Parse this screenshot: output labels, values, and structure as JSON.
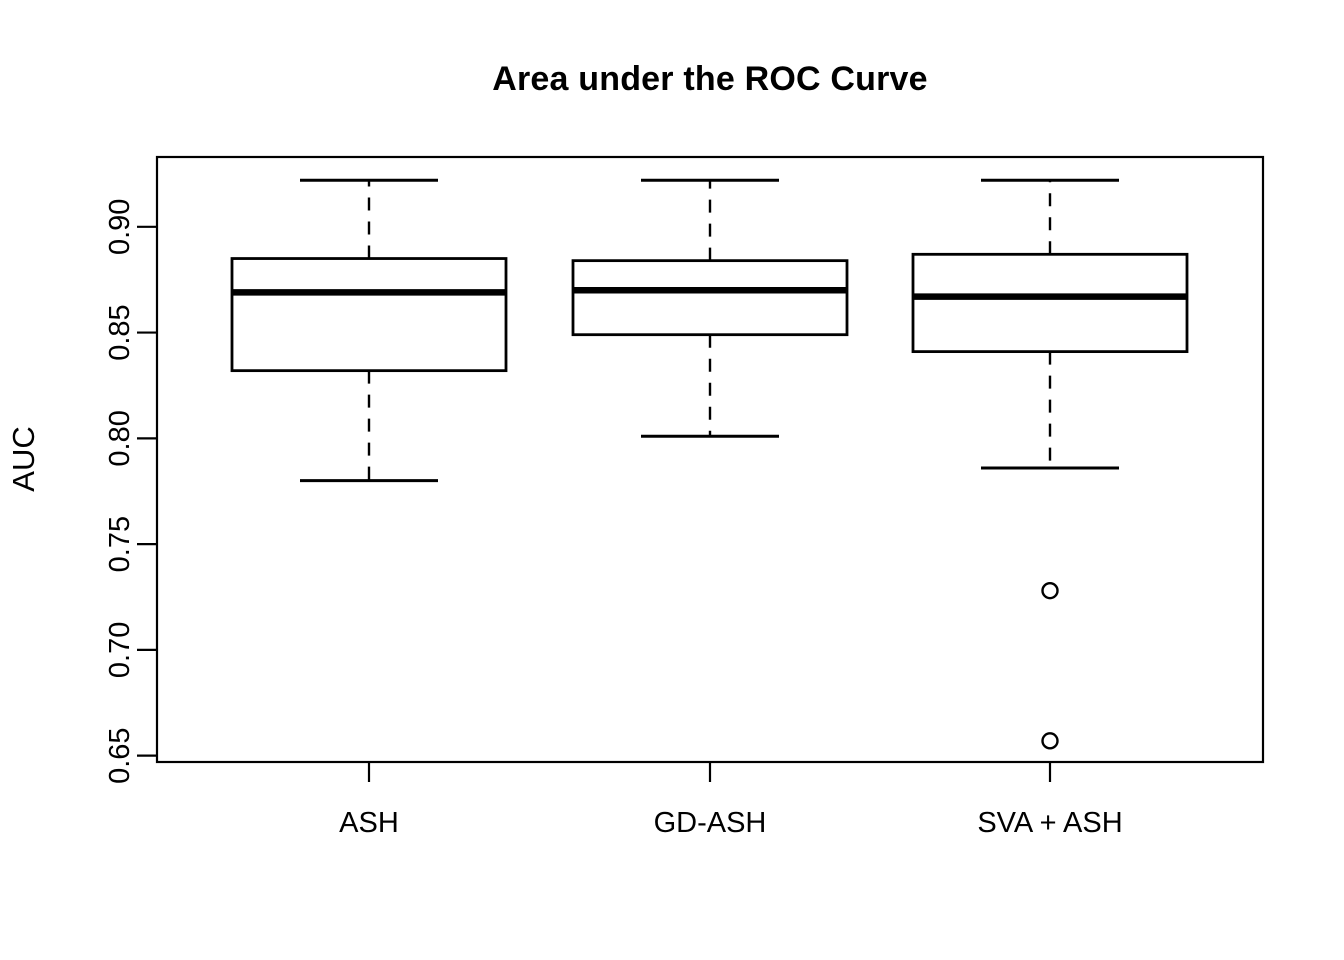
{
  "title": "Area under the ROC Curve",
  "y_axis": {
    "label": "AUC",
    "tick_labels": [
      "0.65",
      "0.70",
      "0.75",
      "0.80",
      "0.85",
      "0.90"
    ]
  },
  "x_axis": {
    "categories": [
      "ASH",
      "GD-ASH",
      "SVA + ASH"
    ]
  },
  "colors": {
    "foreground": "#000000",
    "background": "#ffffff"
  },
  "chart_data": {
    "type": "boxplot",
    "title": "Area under the ROC Curve",
    "xlabel": "",
    "ylabel": "AUC",
    "categories": [
      "ASH",
      "GD-ASH",
      "SVA + ASH"
    ],
    "ylim": [
      0.647,
      0.933
    ],
    "yticks": [
      0.65,
      0.7,
      0.75,
      0.8,
      0.85,
      0.9
    ],
    "grid": false,
    "legend": "none",
    "series": [
      {
        "name": "ASH",
        "whisker_low": 0.78,
        "q1": 0.832,
        "median": 0.869,
        "q3": 0.885,
        "whisker_high": 0.922,
        "outliers": []
      },
      {
        "name": "GD-ASH",
        "whisker_low": 0.801,
        "q1": 0.849,
        "median": 0.87,
        "q3": 0.884,
        "whisker_high": 0.922,
        "outliers": []
      },
      {
        "name": "SVA + ASH",
        "whisker_low": 0.786,
        "q1": 0.841,
        "median": 0.867,
        "q3": 0.887,
        "whisker_high": 0.922,
        "outliers": [
          0.728,
          0.657
        ]
      }
    ]
  }
}
